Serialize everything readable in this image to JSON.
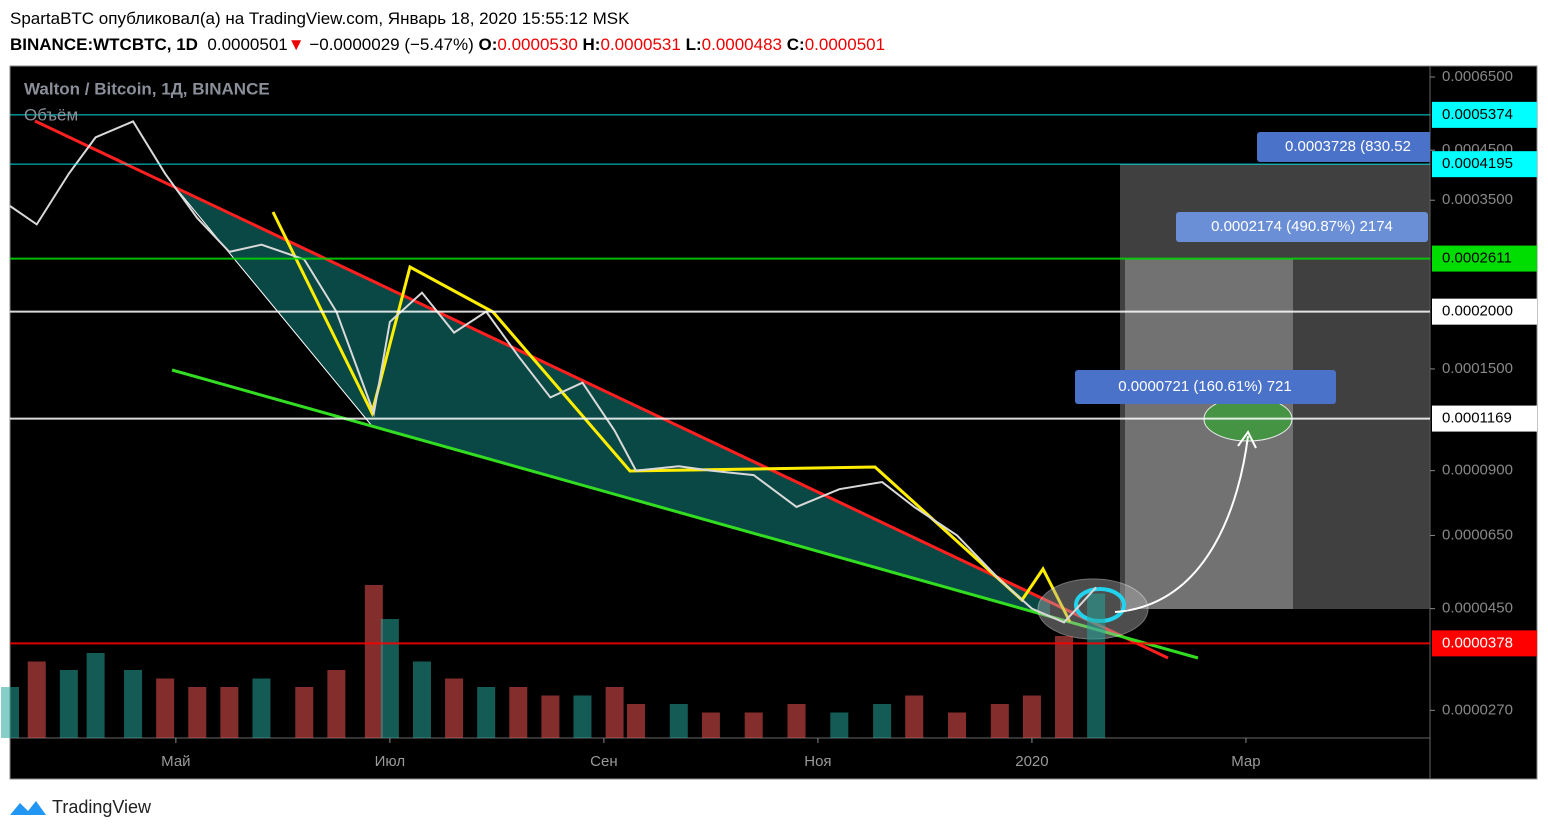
{
  "header": {
    "byline": "SpartaBTC опубликовал(а) на TradingView.com, Январь 18, 2020 15:55:12 MSK",
    "symbol": "BINANCE:WTCBTC, 1D",
    "last": "0.0000501",
    "arrow": "▼",
    "change": "−0.0000029 (−5.47%)",
    "o_label": "O:",
    "o": "0.0000530",
    "h_label": "H:",
    "h": "0.0000531",
    "l_label": "L:",
    "l": "0.0000483",
    "c_label": "C:",
    "c": "0.0000501"
  },
  "chart_data": {
    "type": "line",
    "title": "Walton / Bitcoin, 1Д, BINANCE",
    "subtitle": "Объём",
    "log_scale": true,
    "xlim": [
      0.45,
      13.72
    ],
    "xticks": [
      {
        "value": 2,
        "label": "Май"
      },
      {
        "value": 4,
        "label": "Июл"
      },
      {
        "value": 6,
        "label": "Сен"
      },
      {
        "value": 8,
        "label": "Ноя"
      },
      {
        "value": 10,
        "label": "2020"
      },
      {
        "value": 12,
        "label": "Мар"
      }
    ],
    "ylim": [
      2.35e-05,
      0.00068
    ],
    "yticks": [
      {
        "value": 0.00065,
        "label": "0.0006500"
      },
      {
        "value": 0.00045,
        "label": "0.0004500"
      },
      {
        "value": 0.00035,
        "label": "0.0003500"
      },
      {
        "value": 0.00015,
        "label": "0.0001500"
      },
      {
        "value": 9e-05,
        "label": "0.0000900"
      },
      {
        "value": 6.5e-05,
        "label": "0.0000650"
      },
      {
        "value": 4.5e-05,
        "label": "0.0000450"
      },
      {
        "value": 2.7e-05,
        "label": "0.0000270"
      }
    ],
    "x": [
      0.45,
      0.7,
      1.0,
      1.25,
      1.6,
      1.9,
      2.2,
      2.5,
      2.8,
      3.2,
      3.5,
      3.85,
      4.0,
      4.3,
      4.6,
      4.9,
      5.2,
      5.5,
      5.8,
      6.1,
      6.3,
      6.7,
      7.0,
      7.4,
      7.8,
      8.2,
      8.6,
      8.9,
      9.3,
      9.7,
      10.0,
      10.3,
      10.6
    ],
    "series": [
      {
        "name": "WTCBTC",
        "color": "#d9d9d9",
        "values": [
          0.00034,
          0.00031,
          0.0004,
          0.00048,
          0.00052,
          0.0004,
          0.00032,
          0.00027,
          0.00028,
          0.00026,
          0.0002,
          0.00012,
          0.00019,
          0.00022,
          0.00018,
          0.0002,
          0.00016,
          0.00013,
          0.00014,
          0.00011,
          9e-05,
          9.2e-05,
          9e-05,
          8.8e-05,
          7.5e-05,
          8.2e-05,
          8.5e-05,
          7.5e-05,
          6.5e-05,
          5.2e-05,
          4.5e-05,
          4.2e-05,
          5.01e-05
        ]
      }
    ],
    "volume": {
      "up_color": "#26a69a",
      "down_color": "#ef5350",
      "lim": [
        0,
        100
      ],
      "values": [
        30,
        45,
        40,
        50,
        40,
        35,
        30,
        30,
        35,
        30,
        40,
        90,
        70,
        45,
        35,
        30,
        30,
        25,
        25,
        30,
        20,
        20,
        15,
        15,
        20,
        15,
        20,
        25,
        15,
        20,
        25,
        60,
        85
      ]
    },
    "levels": [
      {
        "value": 0.0005374,
        "label": "0.0005374",
        "color": "#00ffff",
        "text_color": "#000000"
      },
      {
        "value": 0.0004195,
        "label": "0.0004195",
        "color": "#00ffff",
        "text_color": "#000000"
      },
      {
        "value": 0.0002611,
        "label": "0.0002611",
        "color": "#00dd00",
        "text_color": "#000000"
      },
      {
        "value": 0.0002,
        "label": "0.0002000",
        "color": "#ffffff",
        "text_color": "#000000"
      },
      {
        "value": 0.0001169,
        "label": "0.0001169",
        "color": "#ffffff",
        "text_color": "#000000"
      },
      {
        "value": 3.78e-05,
        "label": "0.0000378",
        "color": "#ff0000",
        "text_color": "#ffffff"
      }
    ],
    "annotations": [
      "0.0003728 (830.52",
      "0.0002174 (490.87%) 2174",
      "0.0000721 (160.61%) 721"
    ]
  },
  "footer": {
    "brand": "TradingView"
  }
}
